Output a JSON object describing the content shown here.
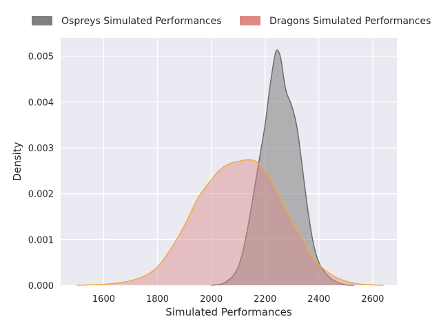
{
  "chart_data": {
    "type": "area",
    "xlabel": "Simulated Performances",
    "ylabel": "Density",
    "xlim": [
      1440,
      2690
    ],
    "ylim": [
      0,
      0.0054
    ],
    "x_ticks": [
      1600,
      1800,
      2000,
      2200,
      2400,
      2600
    ],
    "y_ticks": [
      0.0,
      0.001,
      0.002,
      0.003,
      0.004,
      0.005
    ],
    "y_tick_labels": [
      "0.000",
      "0.001",
      "0.002",
      "0.003",
      "0.004",
      "0.005"
    ],
    "grid": true,
    "legend_position": "top",
    "series": [
      {
        "name": "Ospreys Simulated Performances",
        "fill": "#808080",
        "line": "#6b6b6b",
        "fill_opacity": 0.55,
        "x": [
          2000,
          2040,
          2060,
          2080,
          2100,
          2120,
          2140,
          2160,
          2180,
          2200,
          2215,
          2230,
          2240,
          2250,
          2260,
          2270,
          2280,
          2300,
          2320,
          2340,
          2360,
          2380,
          2400,
          2420,
          2440,
          2460,
          2480,
          2500,
          2530
        ],
        "y": [
          0.0,
          3e-05,
          0.0001,
          0.0002,
          0.0004,
          0.0008,
          0.0014,
          0.0021,
          0.0028,
          0.0035,
          0.0042,
          0.0048,
          0.0051,
          0.0051,
          0.0049,
          0.0045,
          0.0042,
          0.0039,
          0.0034,
          0.0025,
          0.0016,
          0.0009,
          0.0005,
          0.0003,
          0.00017,
          9e-05,
          4e-05,
          1e-05,
          0.0
        ]
      },
      {
        "name": "Dragons Simulated Performances",
        "fill": "#dd8a86",
        "line": "#f4a93a",
        "fill_opacity": 0.45,
        "x": [
          1500,
          1550,
          1600,
          1650,
          1700,
          1750,
          1800,
          1850,
          1900,
          1950,
          2000,
          2020,
          2050,
          2080,
          2100,
          2120,
          2140,
          2160,
          2180,
          2200,
          2220,
          2240,
          2260,
          2280,
          2300,
          2320,
          2350,
          2380,
          2400,
          2450,
          2500,
          2550,
          2600,
          2640
        ],
        "y": [
          0.0,
          1e-05,
          2e-05,
          5e-05,
          0.0001,
          0.0002,
          0.0004,
          0.0008,
          0.0013,
          0.0019,
          0.0023,
          0.00245,
          0.0026,
          0.00268,
          0.0027,
          0.00273,
          0.00274,
          0.00272,
          0.00263,
          0.0025,
          0.00232,
          0.0021,
          0.00187,
          0.00163,
          0.00142,
          0.0012,
          0.0009,
          0.0006,
          0.00045,
          0.00022,
          9e-05,
          3e-05,
          1e-05,
          0.0
        ]
      }
    ]
  }
}
